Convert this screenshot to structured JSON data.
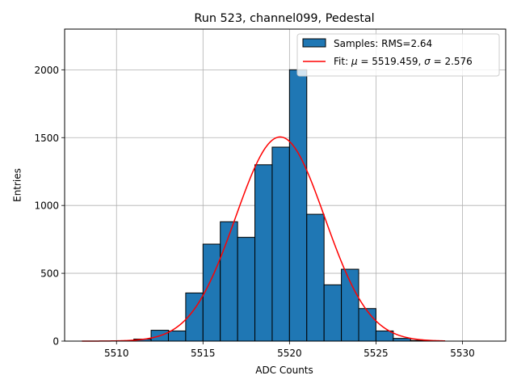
{
  "chart_data": {
    "type": "bar",
    "title": "Run 523, channel099, Pedestal",
    "xlabel": "ADC Counts",
    "ylabel": "Entries",
    "xlim": [
      5507,
      5532.5
    ],
    "ylim": [
      0,
      2300
    ],
    "xticks": [
      5510,
      5515,
      5520,
      5525,
      5530
    ],
    "yticks": [
      0,
      500,
      1000,
      1500,
      2000
    ],
    "grid": true,
    "legend_position": "top-right",
    "colors": {
      "bars": "#1f77b4",
      "bar_edge": "#000000",
      "fit": "#ff0000"
    },
    "series": [
      {
        "type": "histogram",
        "legend": "Samples: RMS=2.64",
        "bin_edges": [
          5511,
          5512,
          5513,
          5514,
          5515,
          5516,
          5517,
          5518,
          5519,
          5520,
          5521,
          5522,
          5523,
          5524,
          5525,
          5526,
          5527,
          5528
        ],
        "counts": [
          15,
          80,
          75,
          355,
          715,
          880,
          765,
          1300,
          1430,
          2000,
          935,
          415,
          530,
          240,
          75,
          20,
          5
        ]
      },
      {
        "type": "line",
        "legend_prefix": "Fit: ",
        "mu_symbol": "μ",
        "sigma_symbol": "σ",
        "mu": 5519.459,
        "sigma": 2.576,
        "amplitude": 1505,
        "x_range": [
          5508,
          5529
        ]
      }
    ],
    "legend_entries": [
      {
        "text": "Samples: RMS=2.64"
      },
      {
        "prefix": "Fit: ",
        "mu_sym": "μ",
        "eq1": " = 5519.459, ",
        "sigma_sym": "σ",
        "eq2": " = 2.576"
      }
    ]
  }
}
